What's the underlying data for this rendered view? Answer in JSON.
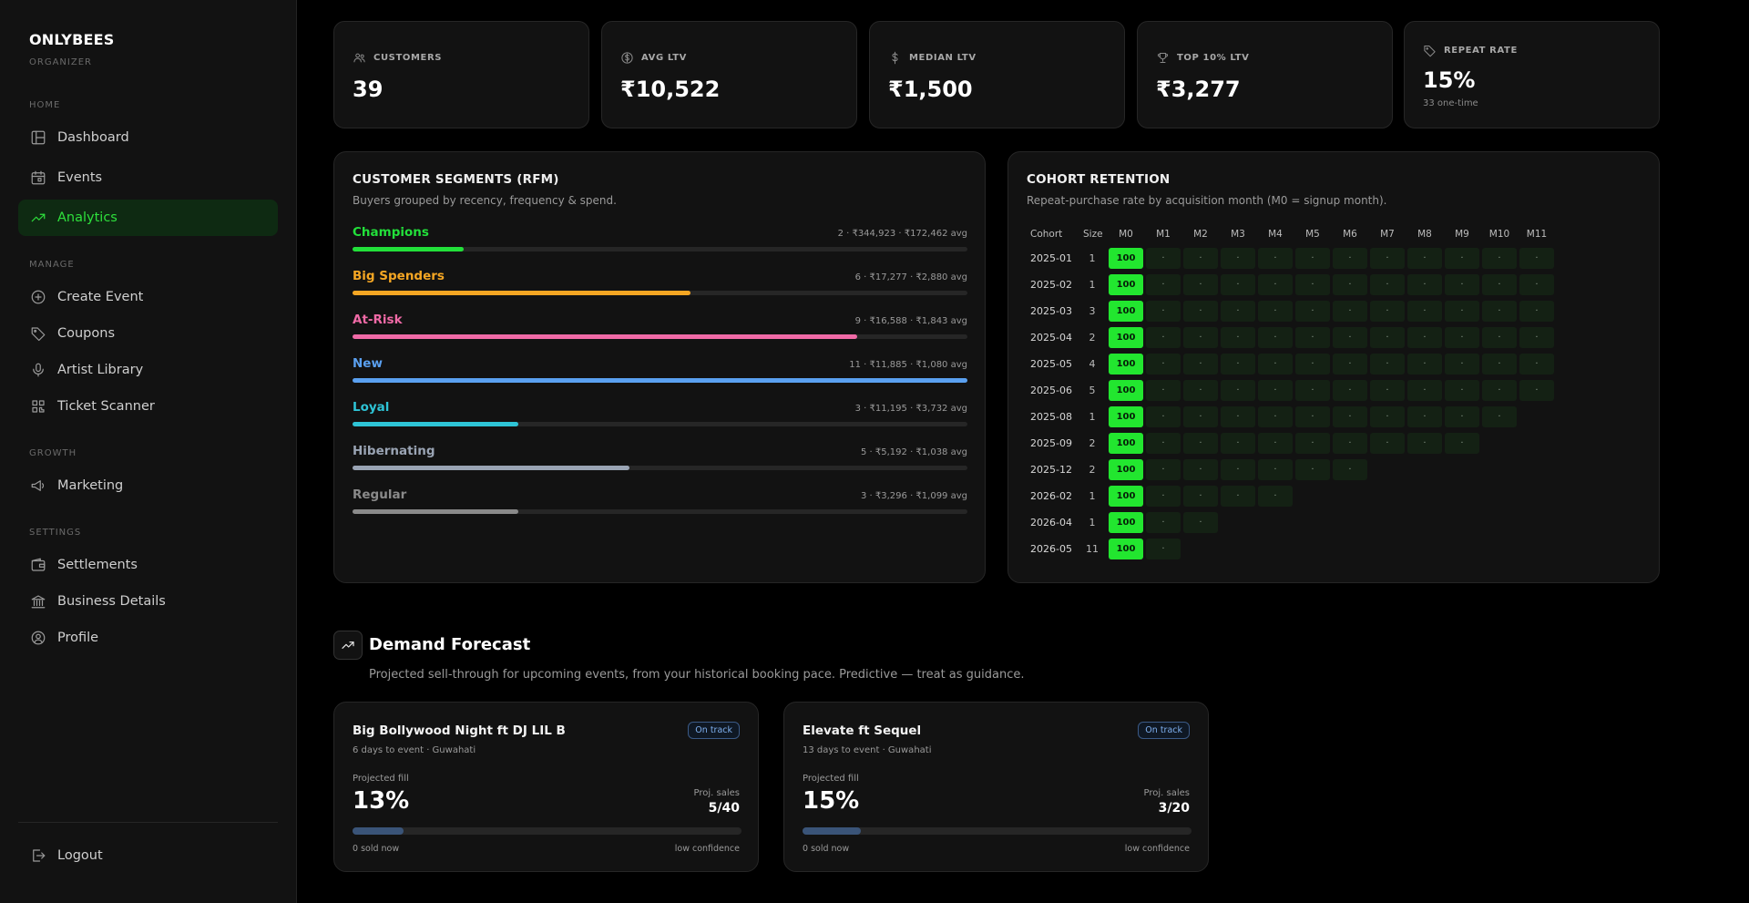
{
  "sidebar": {
    "brand": "ONLYBEES",
    "brand_sub": "ORGANIZER",
    "sections": {
      "home": "HOME",
      "manage": "MANAGE",
      "growth": "GROWTH",
      "settings": "SETTINGS"
    },
    "items": {
      "dashboard": "Dashboard",
      "events": "Events",
      "analytics": "Analytics",
      "create_event": "Create Event",
      "coupons": "Coupons",
      "artist_library": "Artist Library",
      "ticket_scanner": "Ticket Scanner",
      "marketing": "Marketing",
      "settlements": "Settlements",
      "business_details": "Business Details",
      "profile": "Profile",
      "logout": "Logout"
    },
    "active_item": "analytics",
    "accent_color": "#2ee03c"
  },
  "stats": {
    "customers": {
      "label": "CUSTOMERS",
      "value": "39",
      "icon": "users-icon"
    },
    "avg_ltv": {
      "label": "AVG LTV",
      "value": "₹10,522",
      "icon": "dollar-circle-icon"
    },
    "median_ltv": {
      "label": "MEDIAN LTV",
      "value": "₹1,500",
      "icon": "dollar-icon"
    },
    "top10_ltv": {
      "label": "TOP 10% LTV",
      "value": "₹3,277",
      "icon": "trophy-icon"
    },
    "repeat_rate": {
      "label": "REPEAT RATE",
      "value": "15%",
      "sub": "33 one-time",
      "icon": "tag-icon"
    }
  },
  "segments": {
    "title": "CUSTOMER SEGMENTS (RFM)",
    "subtitle": "Buyers grouped by recency, frequency & spend.",
    "items": [
      {
        "name": "Champions",
        "stat": "2 · ₹344,923 · ₹172,462 avg",
        "color": "#22e03a",
        "fill": 0.18
      },
      {
        "name": "Big Spenders",
        "stat": "6 · ₹17,277 · ₹2,880 avg",
        "color": "#f5a623",
        "fill": 0.55
      },
      {
        "name": "At-Risk",
        "stat": "9 · ₹16,588 · ₹1,843 avg",
        "color": "#f06aa6",
        "fill": 0.82
      },
      {
        "name": "New",
        "stat": "11 · ₹11,885 · ₹1,080 avg",
        "color": "#5aa0f0",
        "fill": 1.0
      },
      {
        "name": "Loyal",
        "stat": "3 · ₹11,195 · ₹3,732 avg",
        "color": "#2ec4d6",
        "fill": 0.27
      },
      {
        "name": "Hibernating",
        "stat": "5 · ₹5,192 · ₹1,038 avg",
        "color": "#9aa4b4",
        "fill": 0.45
      },
      {
        "name": "Regular",
        "stat": "3 · ₹3,296 · ₹1,099 avg",
        "color": "#8a8a8a",
        "fill": 0.27
      }
    ]
  },
  "cohort": {
    "title": "COHORT RETENTION",
    "subtitle": "Repeat-purchase rate by acquisition month (M0 = signup month).",
    "headers": [
      "Cohort",
      "Size",
      "M0",
      "M1",
      "M2",
      "M3",
      "M4",
      "M5",
      "M6",
      "M7",
      "M8",
      "M9",
      "M10",
      "M11"
    ],
    "m0_value": "100",
    "empty_mark": "·",
    "rows": [
      {
        "cohort": "2025-01",
        "size": "1",
        "months": 12
      },
      {
        "cohort": "2025-02",
        "size": "1",
        "months": 12
      },
      {
        "cohort": "2025-03",
        "size": "3",
        "months": 12
      },
      {
        "cohort": "2025-04",
        "size": "2",
        "months": 12
      },
      {
        "cohort": "2025-05",
        "size": "4",
        "months": 12
      },
      {
        "cohort": "2025-06",
        "size": "5",
        "months": 12
      },
      {
        "cohort": "2025-08",
        "size": "1",
        "months": 11
      },
      {
        "cohort": "2025-09",
        "size": "2",
        "months": 10
      },
      {
        "cohort": "2025-12",
        "size": "2",
        "months": 7
      },
      {
        "cohort": "2026-02",
        "size": "1",
        "months": 5
      },
      {
        "cohort": "2026-04",
        "size": "1",
        "months": 3
      },
      {
        "cohort": "2026-05",
        "size": "11",
        "months": 2
      }
    ]
  },
  "forecast": {
    "title": "Demand Forecast",
    "subtitle": "Projected sell-through for upcoming events, from your historical booking pace. Predictive — treat as guidance.",
    "events": [
      {
        "name": "Big Bollywood Night ft DJ LIL B",
        "meta": "6 days to event · Guwahati",
        "badge": "On track",
        "fill_label": "Projected fill",
        "fill_pct": "13%",
        "fill": 0.13,
        "sales_label": "Proj. sales",
        "sales": "5/40",
        "sold": "0 sold now",
        "confidence": "low confidence"
      },
      {
        "name": "Elevate ft Sequel",
        "meta": "13 days to event · Guwahati",
        "badge": "On track",
        "fill_label": "Projected fill",
        "fill_pct": "15%",
        "fill": 0.15,
        "sales_label": "Proj. sales",
        "sales": "3/20",
        "sold": "0 sold now",
        "confidence": "low confidence"
      }
    ]
  }
}
